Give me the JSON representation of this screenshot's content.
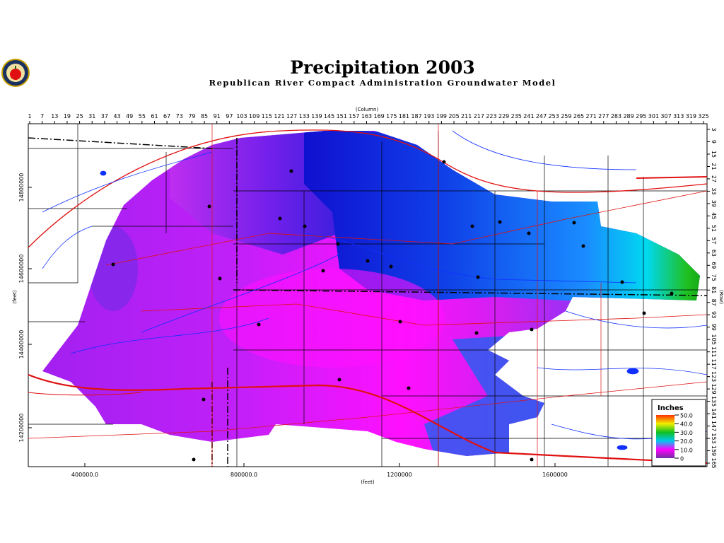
{
  "header": {
    "title": "Precipitation 2003",
    "subtitle": "Republican River Compact Administration Groundwater Model"
  },
  "column_axis": {
    "label": "(Column)",
    "ticks": [
      1,
      7,
      13,
      19,
      25,
      31,
      37,
      43,
      49,
      55,
      61,
      67,
      73,
      79,
      85,
      91,
      97,
      103,
      109,
      115,
      121,
      127,
      133,
      139,
      145,
      151,
      157,
      163,
      169,
      175,
      181,
      187,
      193,
      199,
      205,
      211,
      217,
      223,
      229,
      235,
      241,
      247,
      253,
      259,
      265,
      271,
      277,
      283,
      289,
      295,
      301,
      307,
      313,
      319,
      325
    ]
  },
  "row_axis": {
    "label": "(Row)",
    "ticks": [
      3,
      9,
      15,
      21,
      27,
      33,
      39,
      45,
      51,
      57,
      63,
      69,
      75,
      81,
      87,
      93,
      99,
      105,
      111,
      117,
      123,
      129,
      135,
      141,
      147,
      153,
      159,
      165
    ]
  },
  "y_axis": {
    "label": "(feet)",
    "ticks": [
      "14800000",
      "14600000",
      "14400000",
      "14200000"
    ]
  },
  "x_axis": {
    "label": "(feet)",
    "ticks": [
      "400000.0",
      "800000.0",
      "1200000",
      "1600000"
    ]
  },
  "legend": {
    "title": "Inches",
    "entries": [
      {
        "label": "50.0",
        "color": "#ff3000"
      },
      {
        "label": "40.0",
        "color": "#f0f000"
      },
      {
        "label": "30.0",
        "color": "#10c020"
      },
      {
        "label": "20.0",
        "color": "#00c8f0"
      },
      {
        "label": "10.0",
        "color": "#ff00ff"
      },
      {
        "label": "0",
        "color": "#7030a0"
      }
    ]
  }
}
